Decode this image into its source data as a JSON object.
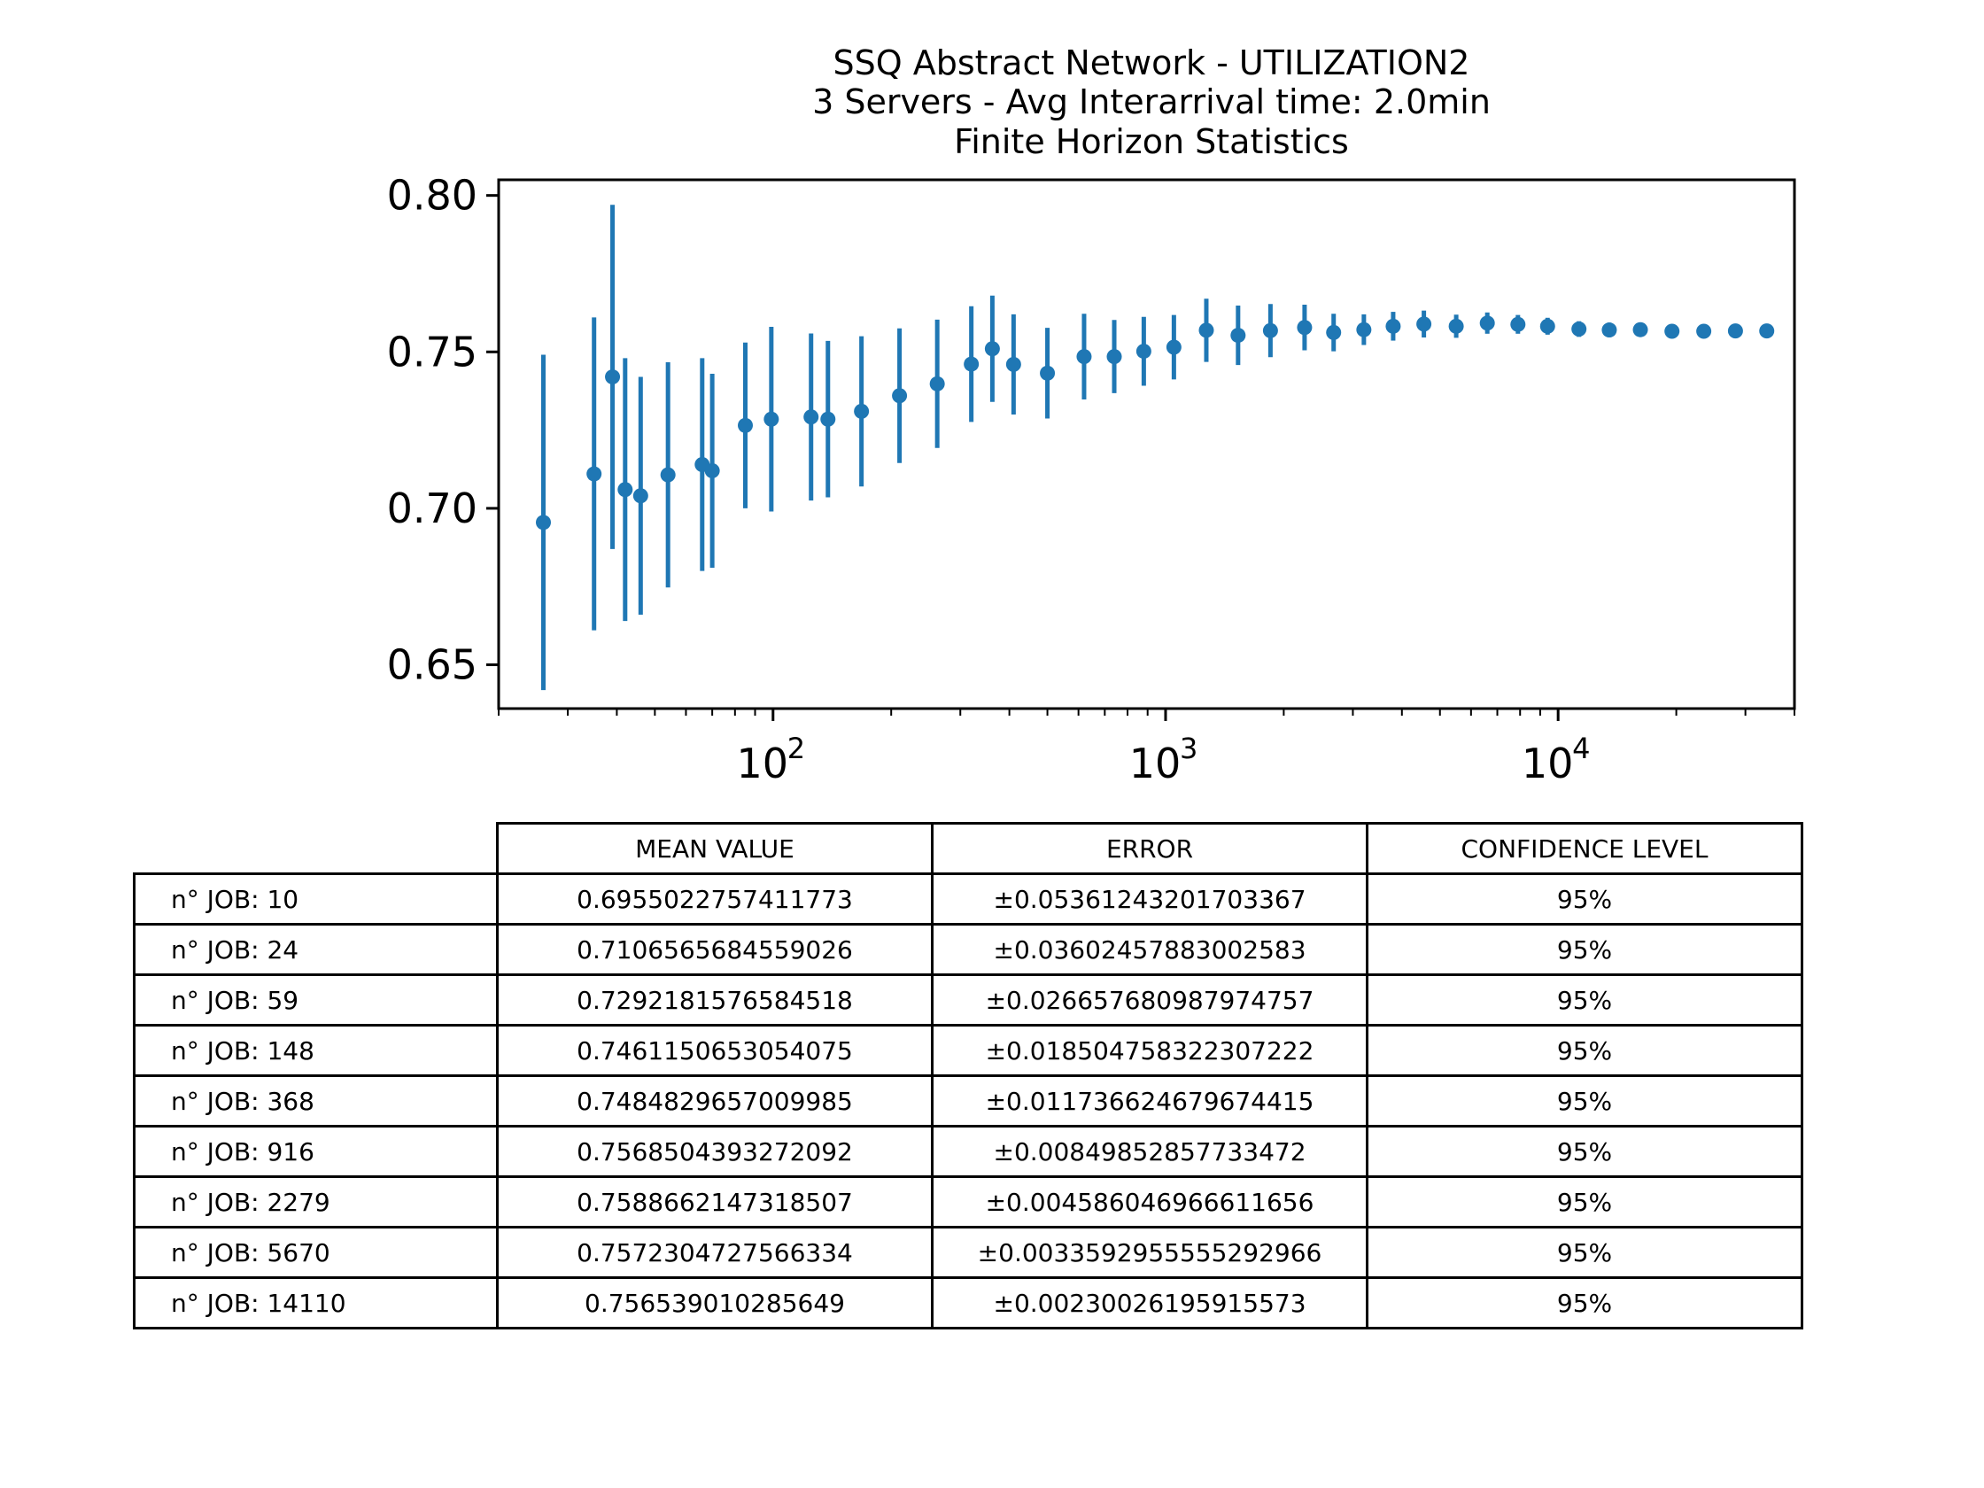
{
  "chart_data": {
    "type": "scatter",
    "subtype": "errorbar",
    "title": [
      "SSQ Abstract Network - UTILIZATION2",
      "3 Servers -  Avg Interarrival time: 2.0min",
      "Finite Horizon Statistics"
    ],
    "xlabel": "",
    "ylabel": "",
    "xscale": "log",
    "xlim": [
      20,
      40000
    ],
    "ylim": [
      0.636,
      0.805
    ],
    "yticks": [
      0.65,
      0.7,
      0.75,
      0.8
    ],
    "ytick_labels": [
      "0.65",
      "0.70",
      "0.75",
      "0.80"
    ],
    "xticks": [
      100,
      1000,
      10000
    ],
    "xtick_labels": [
      {
        "base": "10",
        "exp": "2"
      },
      {
        "base": "10",
        "exp": "3"
      },
      {
        "base": "10",
        "exp": "4"
      }
    ],
    "grid": false,
    "color": "#1f77b4",
    "series": [
      {
        "points": [
          {
            "x": 26,
            "y": 0.6955,
            "err": 0.0536
          },
          {
            "x": 35,
            "y": 0.711,
            "err": 0.05
          },
          {
            "x": 39,
            "y": 0.742,
            "err": 0.055
          },
          {
            "x": 42,
            "y": 0.706,
            "err": 0.042
          },
          {
            "x": 46,
            "y": 0.704,
            "err": 0.038
          },
          {
            "x": 54,
            "y": 0.7107,
            "err": 0.036
          },
          {
            "x": 66,
            "y": 0.714,
            "err": 0.034
          },
          {
            "x": 70,
            "y": 0.712,
            "err": 0.031
          },
          {
            "x": 85,
            "y": 0.7265,
            "err": 0.0265
          },
          {
            "x": 99,
            "y": 0.7285,
            "err": 0.0295
          },
          {
            "x": 125,
            "y": 0.7292,
            "err": 0.0267
          },
          {
            "x": 138,
            "y": 0.7285,
            "err": 0.025
          },
          {
            "x": 168,
            "y": 0.731,
            "err": 0.024
          },
          {
            "x": 210,
            "y": 0.736,
            "err": 0.0215
          },
          {
            "x": 262,
            "y": 0.7398,
            "err": 0.0205
          },
          {
            "x": 320,
            "y": 0.7461,
            "err": 0.0185
          },
          {
            "x": 362,
            "y": 0.751,
            "err": 0.017
          },
          {
            "x": 410,
            "y": 0.746,
            "err": 0.016
          },
          {
            "x": 500,
            "y": 0.7432,
            "err": 0.0145
          },
          {
            "x": 620,
            "y": 0.7485,
            "err": 0.0137
          },
          {
            "x": 740,
            "y": 0.7485,
            "err": 0.0117
          },
          {
            "x": 880,
            "y": 0.7502,
            "err": 0.011
          },
          {
            "x": 1050,
            "y": 0.7515,
            "err": 0.0103
          },
          {
            "x": 1270,
            "y": 0.7569,
            "err": 0.0101
          },
          {
            "x": 1530,
            "y": 0.7553,
            "err": 0.0095
          },
          {
            "x": 1850,
            "y": 0.7568,
            "err": 0.0085
          },
          {
            "x": 2260,
            "y": 0.7578,
            "err": 0.0073
          },
          {
            "x": 2680,
            "y": 0.7562,
            "err": 0.006
          },
          {
            "x": 3200,
            "y": 0.7571,
            "err": 0.0049
          },
          {
            "x": 3800,
            "y": 0.7582,
            "err": 0.0046
          },
          {
            "x": 4550,
            "y": 0.7589,
            "err": 0.0043
          },
          {
            "x": 5500,
            "y": 0.7582,
            "err": 0.0037
          },
          {
            "x": 6600,
            "y": 0.7592,
            "err": 0.0034
          },
          {
            "x": 7900,
            "y": 0.7588,
            "err": 0.003
          },
          {
            "x": 9400,
            "y": 0.7582,
            "err": 0.0027
          },
          {
            "x": 11300,
            "y": 0.7573,
            "err": 0.0025
          },
          {
            "x": 13500,
            "y": 0.757,
            "err": 0.0023
          },
          {
            "x": 16200,
            "y": 0.7571,
            "err": 0.0019
          },
          {
            "x": 19500,
            "y": 0.7566,
            "err": 0.0016
          },
          {
            "x": 23500,
            "y": 0.7566,
            "err": 0.0014
          },
          {
            "x": 28300,
            "y": 0.7567,
            "err": 0.0013
          },
          {
            "x": 34000,
            "y": 0.7567,
            "err": 0.0012
          }
        ]
      }
    ],
    "table": {
      "columns": [
        "MEAN VALUE",
        "ERROR",
        "CONFIDENCE LEVEL"
      ],
      "rows": [
        {
          "label": "n° JOB: 10",
          "mean": "0.6955022757411773",
          "error": "±0.05361243201703367",
          "confidence": "95%"
        },
        {
          "label": "n° JOB: 24",
          "mean": "0.7106565684559026",
          "error": "±0.03602457883002583",
          "confidence": "95%"
        },
        {
          "label": "n° JOB: 59",
          "mean": "0.7292181576584518",
          "error": "±0.026657680987974757",
          "confidence": "95%"
        },
        {
          "label": "n° JOB: 148",
          "mean": "0.7461150653054075",
          "error": "±0.018504758322307222",
          "confidence": "95%"
        },
        {
          "label": "n° JOB: 368",
          "mean": "0.7484829657009985",
          "error": "±0.011736624679674415",
          "confidence": "95%"
        },
        {
          "label": "n° JOB: 916",
          "mean": "0.7568504393272092",
          "error": "±0.00849852857733472",
          "confidence": "95%"
        },
        {
          "label": "n° JOB: 2279",
          "mean": "0.7588662147318507",
          "error": "±0.004586046966611656",
          "confidence": "95%"
        },
        {
          "label": "n° JOB: 5670",
          "mean": "0.7572304727566334",
          "error": "±0.0033592955555292966",
          "confidence": "95%"
        },
        {
          "label": "n° JOB: 14110",
          "mean": "0.756539010285649",
          "error": "±0.00230026195915573",
          "confidence": "95%"
        }
      ]
    }
  }
}
